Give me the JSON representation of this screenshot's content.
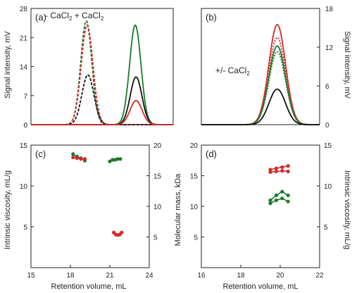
{
  "figure": {
    "shared_labels": {
      "top_left_ylabel": "Signal intensity, mV",
      "top_right_ylabel": "Signal intensity, mV",
      "bottom_left_ylabel": "Intrinsic viscosity, mL/g",
      "bottom_middle_ylabel": "Molecular mass, kDa",
      "bottom_right_ylabel": "Intrinsic viscosity, mL/g",
      "bottom_left_xlabel": "Retention volume, mL",
      "bottom_right_xlabel": "Retention volume, mL"
    },
    "annotations": {
      "a_legend": "- CaCl",
      "a_legend_sub": "2",
      "a_legend_plus": " + CaCl",
      "a_legend_plus_sub": "2",
      "b_note": "+/- CaCl",
      "b_note_sub": "2"
    }
  },
  "chart_data": [
    {
      "id": "a",
      "panel_label": "(a)",
      "type": "line",
      "xlim": [
        15,
        24
      ],
      "ylim": [
        0,
        28
      ],
      "yticks": [
        0,
        7,
        14,
        21,
        28
      ],
      "y_side": "left",
      "series": [
        {
          "color": "#1a7a2a",
          "dash": "4,2",
          "peak_x": 18.5,
          "height": 25,
          "sigma": 0.35
        },
        {
          "color": "#d42a2a",
          "dash": "4,2",
          "peak_x": 18.55,
          "height": 24,
          "sigma": 0.37
        },
        {
          "color": "#111111",
          "dash": "4,2",
          "peak_x": 18.6,
          "height": 12,
          "sigma": 0.38
        },
        {
          "color": "#1a7a2a",
          "dash": "",
          "peak_x": 21.6,
          "height": 24,
          "sigma": 0.36
        },
        {
          "color": "#111111",
          "dash": "",
          "peak_x": 21.65,
          "height": 11.5,
          "sigma": 0.37
        },
        {
          "color": "#d42a2a",
          "dash": "",
          "peak_x": 21.65,
          "height": 5.8,
          "sigma": 0.38
        }
      ]
    },
    {
      "id": "b",
      "panel_label": "(b)",
      "type": "line",
      "xlim": [
        16,
        22
      ],
      "ylim": [
        0,
        18
      ],
      "yticks": [
        0,
        6,
        12,
        18
      ],
      "y_side": "right",
      "series": [
        {
          "color": "#d42a2a",
          "dash": "",
          "peak_x": 19.85,
          "height": 15.5,
          "sigma": 0.42
        },
        {
          "color": "#d42a2a",
          "dash": "2,2",
          "peak_x": 19.85,
          "height": 13.5,
          "sigma": 0.42
        },
        {
          "color": "#1a7a2a",
          "dash": "",
          "peak_x": 19.85,
          "height": 12.2,
          "sigma": 0.42
        },
        {
          "color": "#1a7a2a",
          "dash": "2,2",
          "peak_x": 19.85,
          "height": 11.3,
          "sigma": 0.42
        },
        {
          "color": "#111111",
          "dash": "",
          "peak_x": 19.85,
          "height": 5.5,
          "sigma": 0.42
        }
      ]
    },
    {
      "id": "c",
      "panel_label": "(c)",
      "type": "scatter",
      "xlim": [
        15,
        24
      ],
      "xticks": [
        15,
        18,
        21,
        24
      ],
      "ylim": [
        0,
        15
      ],
      "yticks": [
        5,
        10,
        15
      ],
      "y2lim": [
        0,
        20
      ],
      "y2ticks": [
        5,
        10,
        15,
        20
      ],
      "series": [
        {
          "color": "#1a7a2a",
          "points": [
            [
              18.2,
              13.9
            ],
            [
              18.5,
              13.6
            ],
            [
              18.8,
              13.4
            ],
            [
              19.1,
              13.1
            ]
          ]
        },
        {
          "color": "#d42a2a",
          "points": [
            [
              18.2,
              13.5
            ],
            [
              18.5,
              13.4
            ],
            [
              18.8,
              13.3
            ],
            [
              19.1,
              13.3
            ]
          ]
        },
        {
          "color": "#1a7a2a",
          "points": [
            [
              21.0,
              13.0
            ],
            [
              21.2,
              13.2
            ],
            [
              21.4,
              13.2
            ],
            [
              21.6,
              13.3
            ],
            [
              21.8,
              13.3
            ]
          ]
        },
        {
          "color": "#d42a2a",
          "points": [
            [
              21.3,
              4.3
            ],
            [
              21.45,
              4.05
            ],
            [
              21.6,
              4.0
            ],
            [
              21.75,
              4.05
            ],
            [
              21.9,
              4.3
            ]
          ]
        }
      ]
    },
    {
      "id": "d",
      "panel_label": "(d)",
      "type": "scatter",
      "xlim": [
        16,
        22
      ],
      "xticks": [
        16,
        18,
        20,
        22
      ],
      "ylim": [
        0,
        20
      ],
      "yticks": [
        5,
        10,
        15,
        20
      ],
      "y2lim": [
        0,
        15
      ],
      "y2ticks": [
        5,
        10,
        15
      ],
      "series": [
        {
          "color": "#d42a2a",
          "points": [
            [
              19.5,
              16.0
            ],
            [
              19.8,
              16.2
            ],
            [
              20.1,
              16.4
            ],
            [
              20.4,
              16.6
            ]
          ]
        },
        {
          "color": "#d42a2a",
          "points": [
            [
              19.5,
              15.6
            ],
            [
              19.8,
              15.7
            ],
            [
              20.1,
              15.8
            ],
            [
              20.4,
              15.7
            ]
          ]
        },
        {
          "color": "#1a7a2a",
          "points": [
            [
              19.5,
              11.0
            ],
            [
              19.8,
              11.8
            ],
            [
              20.1,
              12.4
            ],
            [
              20.4,
              11.8
            ]
          ]
        },
        {
          "color": "#1a7a2a",
          "points": [
            [
              19.5,
              10.5
            ],
            [
              19.8,
              11.0
            ],
            [
              20.1,
              11.3
            ],
            [
              20.4,
              10.8
            ]
          ]
        }
      ]
    }
  ]
}
